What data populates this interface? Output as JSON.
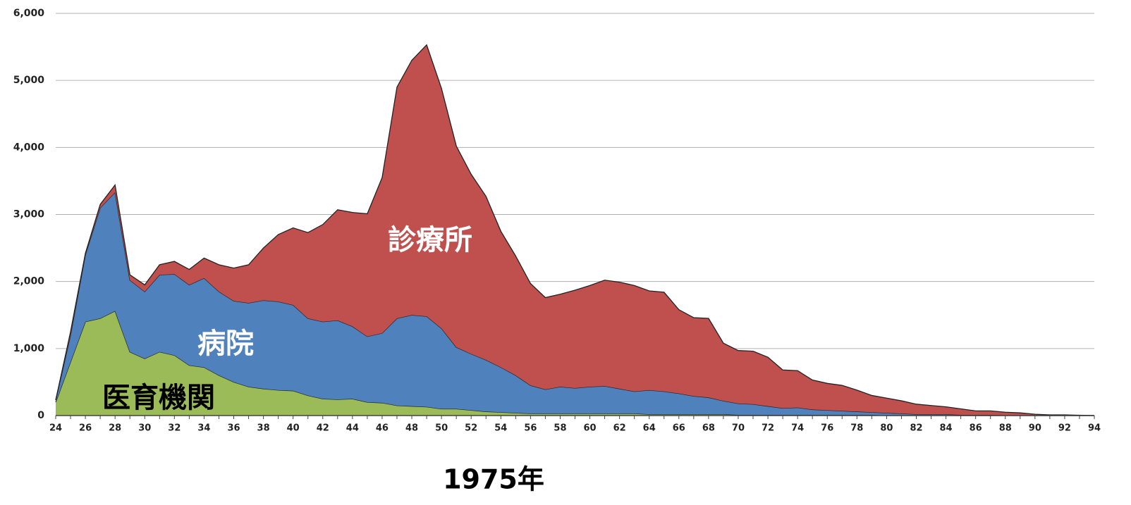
{
  "chart_data": {
    "type": "stacked_area",
    "xlabel": "1975年",
    "categories": [
      "24",
      null,
      "26",
      null,
      "28",
      null,
      "30",
      null,
      "32",
      null,
      "34",
      null,
      "36",
      null,
      "38",
      null,
      "40",
      null,
      "42",
      null,
      "44",
      null,
      "46",
      null,
      "48",
      null,
      "50",
      null,
      "52",
      null,
      "54",
      null,
      "56",
      null,
      "58",
      null,
      "60",
      null,
      "62",
      null,
      "64",
      null,
      "66",
      null,
      "68",
      null,
      "70",
      null,
      "72",
      null,
      "74",
      null,
      "76",
      null,
      "78",
      null,
      "80",
      null,
      "82",
      null,
      "84",
      null,
      "86",
      null,
      "88",
      null,
      "90",
      null,
      "92",
      null,
      "94"
    ],
    "series": [
      {
        "name": "医育機関",
        "color": "#9bbb59",
        "label_color": "#000000",
        "values": [
          200,
          800,
          1400,
          1450,
          1560,
          950,
          850,
          950,
          900,
          750,
          720,
          600,
          500,
          430,
          400,
          380,
          370,
          300,
          250,
          240,
          250,
          200,
          190,
          150,
          140,
          130,
          100,
          100,
          80,
          60,
          50,
          40,
          30,
          30,
          30,
          30,
          30,
          30,
          30,
          30,
          20,
          20,
          20,
          20,
          20,
          20,
          10,
          10,
          10,
          10,
          10,
          10,
          10,
          10,
          10,
          10,
          0,
          0,
          0,
          0,
          0,
          0,
          0,
          0,
          0,
          0,
          0,
          0,
          0,
          0,
          0
        ]
      },
      {
        "name": "病院",
        "color": "#4f81bd",
        "label_color": "#ffffff",
        "values": [
          30,
          400,
          1000,
          1650,
          1770,
          1070,
          1000,
          1150,
          1210,
          1200,
          1330,
          1250,
          1210,
          1250,
          1320,
          1320,
          1280,
          1150,
          1150,
          1180,
          1080,
          980,
          1040,
          1300,
          1360,
          1350,
          1200,
          920,
          840,
          770,
          670,
          560,
          420,
          360,
          400,
          380,
          400,
          410,
          370,
          330,
          360,
          340,
          310,
          270,
          250,
          200,
          170,
          160,
          130,
          100,
          110,
          80,
          70,
          60,
          50,
          40,
          40,
          30,
          20,
          20,
          20,
          10,
          10,
          10,
          5,
          5,
          0,
          0,
          0,
          0,
          0
        ]
      },
      {
        "name": "診療所",
        "color": "#c0504d",
        "label_color": "#ffffff",
        "values": [
          0,
          50,
          20,
          50,
          110,
          80,
          100,
          150,
          190,
          230,
          300,
          400,
          490,
          570,
          780,
          1000,
          1150,
          1280,
          1450,
          1650,
          1700,
          1830,
          2320,
          3450,
          3800,
          4050,
          3580,
          3000,
          2680,
          2440,
          2030,
          1780,
          1520,
          1370,
          1380,
          1460,
          1510,
          1580,
          1590,
          1580,
          1480,
          1480,
          1250,
          1170,
          1180,
          860,
          790,
          790,
          730,
          570,
          550,
          440,
          400,
          380,
          320,
          250,
          220,
          190,
          150,
          130,
          110,
          90,
          60,
          60,
          45,
          35,
          20,
          10,
          10,
          5,
          0
        ]
      }
    ],
    "ylim": [
      0,
      6000
    ],
    "yticks": [
      0,
      {
        "value": 1000,
        "label": "1,000"
      },
      {
        "value": 2000,
        "label": "2,000"
      },
      {
        "value": 3000,
        "label": "3,000"
      },
      {
        "value": 4000,
        "label": "4,000"
      },
      {
        "value": 5000,
        "label": "5,000"
      },
      {
        "value": 6000,
        "label": "6,000"
      }
    ],
    "grid": true
  }
}
